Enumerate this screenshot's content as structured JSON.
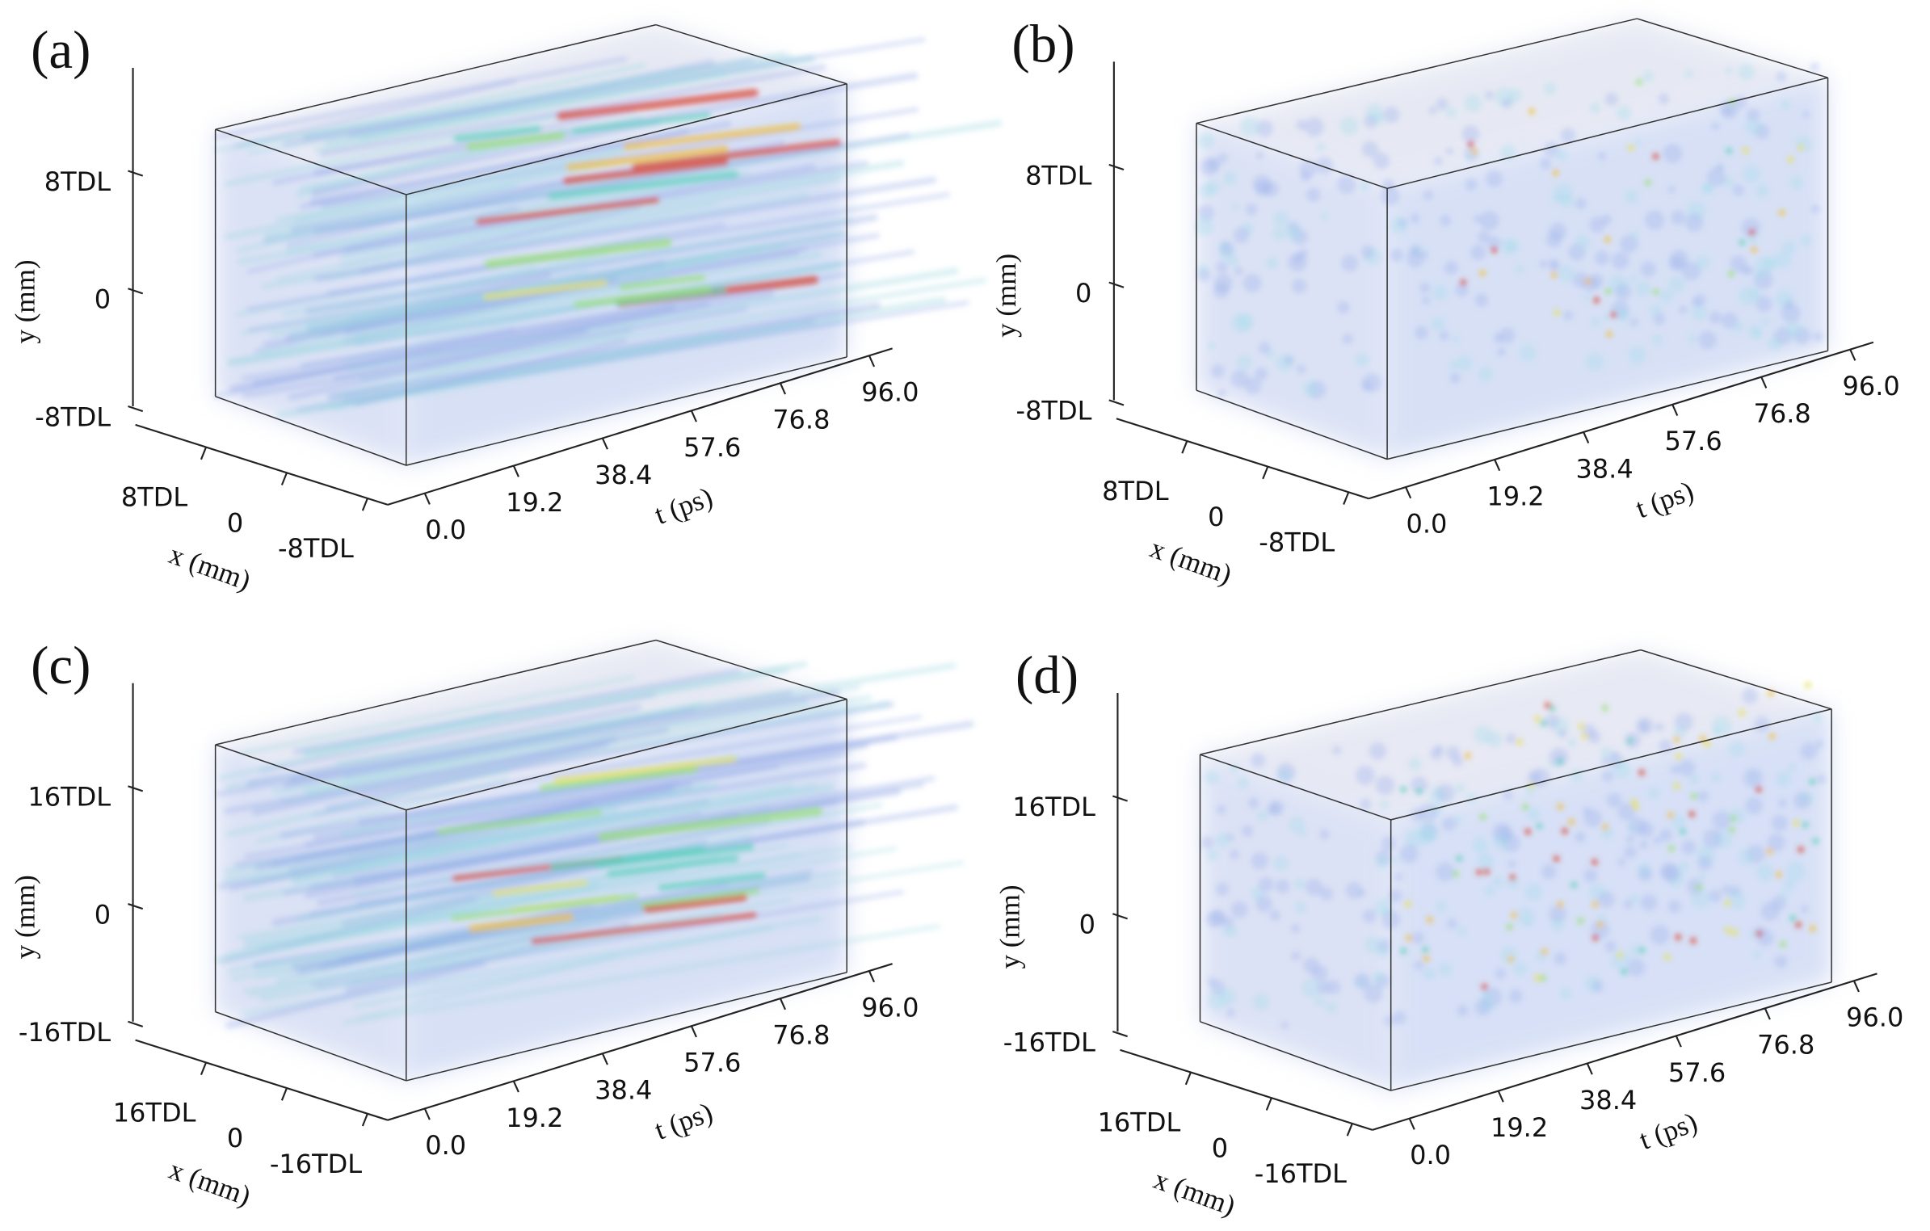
{
  "chart_data": [
    {
      "type": "volume3d",
      "panel_label": "(a)",
      "texture": "streaks",
      "xlabel": "x (mm)",
      "ylabel": "y (mm)",
      "tlabel": "t (ps)",
      "ylim": [
        -8,
        15
      ],
      "yticks": [
        {
          "value": 8,
          "label": "8TDL"
        },
        0,
        {
          "value": -8,
          "label": "-8TDL"
        }
      ],
      "xlim": [
        15,
        -10
      ],
      "xticks": [
        {
          "value": 8,
          "label": "8TDL"
        },
        0,
        {
          "value": -8,
          "label": "-8TDL"
        }
      ],
      "tlim": [
        -8,
        101
      ],
      "tticks": [
        {
          "value": 0,
          "label": "0.0"
        },
        {
          "value": 19.2,
          "label": "19.2"
        },
        {
          "value": 38.4,
          "label": "38.4"
        },
        {
          "value": 57.6,
          "label": "57.6"
        },
        {
          "value": 76.8,
          "label": "76.8"
        },
        {
          "value": 96,
          "label": "96.0"
        }
      ]
    },
    {
      "type": "volume3d",
      "panel_label": "(b)",
      "texture": "dots",
      "xlabel": "x (mm)",
      "ylabel": "y (mm)",
      "tlabel": "t (ps)",
      "ylim": [
        -8,
        15
      ],
      "yticks": [
        {
          "value": 8,
          "label": "8TDL"
        },
        0,
        {
          "value": -8,
          "label": "-8TDL"
        }
      ],
      "xlim": [
        15,
        -10
      ],
      "xticks": [
        {
          "value": 8,
          "label": "8TDL"
        },
        0,
        {
          "value": -8,
          "label": "-8TDL"
        }
      ],
      "tlim": [
        -8,
        101
      ],
      "tticks": [
        {
          "value": 0,
          "label": "0.0"
        },
        {
          "value": 19.2,
          "label": "19.2"
        },
        {
          "value": 38.4,
          "label": "38.4"
        },
        {
          "value": 57.6,
          "label": "57.6"
        },
        {
          "value": 76.8,
          "label": "76.8"
        },
        {
          "value": 96,
          "label": "96.0"
        }
      ]
    },
    {
      "type": "volume3d",
      "panel_label": "(c)",
      "texture": "streaks",
      "xlabel": "x (mm)",
      "ylabel": "y (mm)",
      "tlabel": "t (ps)",
      "ylim": [
        -16,
        30
      ],
      "yticks": [
        {
          "value": 16,
          "label": "16TDL"
        },
        0,
        {
          "value": -16,
          "label": "-16TDL"
        }
      ],
      "xlim": [
        30,
        -20
      ],
      "xticks": [
        {
          "value": 16,
          "label": "16TDL"
        },
        0,
        {
          "value": -16,
          "label": "-16TDL"
        }
      ],
      "tlim": [
        -8,
        101
      ],
      "tticks": [
        {
          "value": 0,
          "label": "0.0"
        },
        {
          "value": 19.2,
          "label": "19.2"
        },
        {
          "value": 38.4,
          "label": "38.4"
        },
        {
          "value": 57.6,
          "label": "57.6"
        },
        {
          "value": 76.8,
          "label": "76.8"
        },
        {
          "value": 96,
          "label": "96.0"
        }
      ]
    },
    {
      "type": "volume3d",
      "panel_label": "(d)",
      "texture": "dots",
      "xlabel": "x (mm)",
      "ylabel": "y (mm)",
      "tlabel": "t (ps)",
      "ylim": [
        -16,
        30
      ],
      "yticks": [
        {
          "value": 16,
          "label": "16TDL"
        },
        0,
        {
          "value": -16,
          "label": "-16TDL"
        }
      ],
      "xlim": [
        30,
        -20
      ],
      "xticks": [
        {
          "value": 16,
          "label": "16TDL"
        },
        0,
        {
          "value": -16,
          "label": "-16TDL"
        }
      ],
      "tlim": [
        -8,
        101
      ],
      "tticks": [
        {
          "value": 0,
          "label": "0.0"
        },
        {
          "value": 19.2,
          "label": "19.2"
        },
        {
          "value": 38.4,
          "label": "38.4"
        },
        {
          "value": 57.6,
          "label": "57.6"
        },
        {
          "value": 76.8,
          "label": "76.8"
        },
        {
          "value": 96,
          "label": "96.0"
        }
      ]
    }
  ]
}
